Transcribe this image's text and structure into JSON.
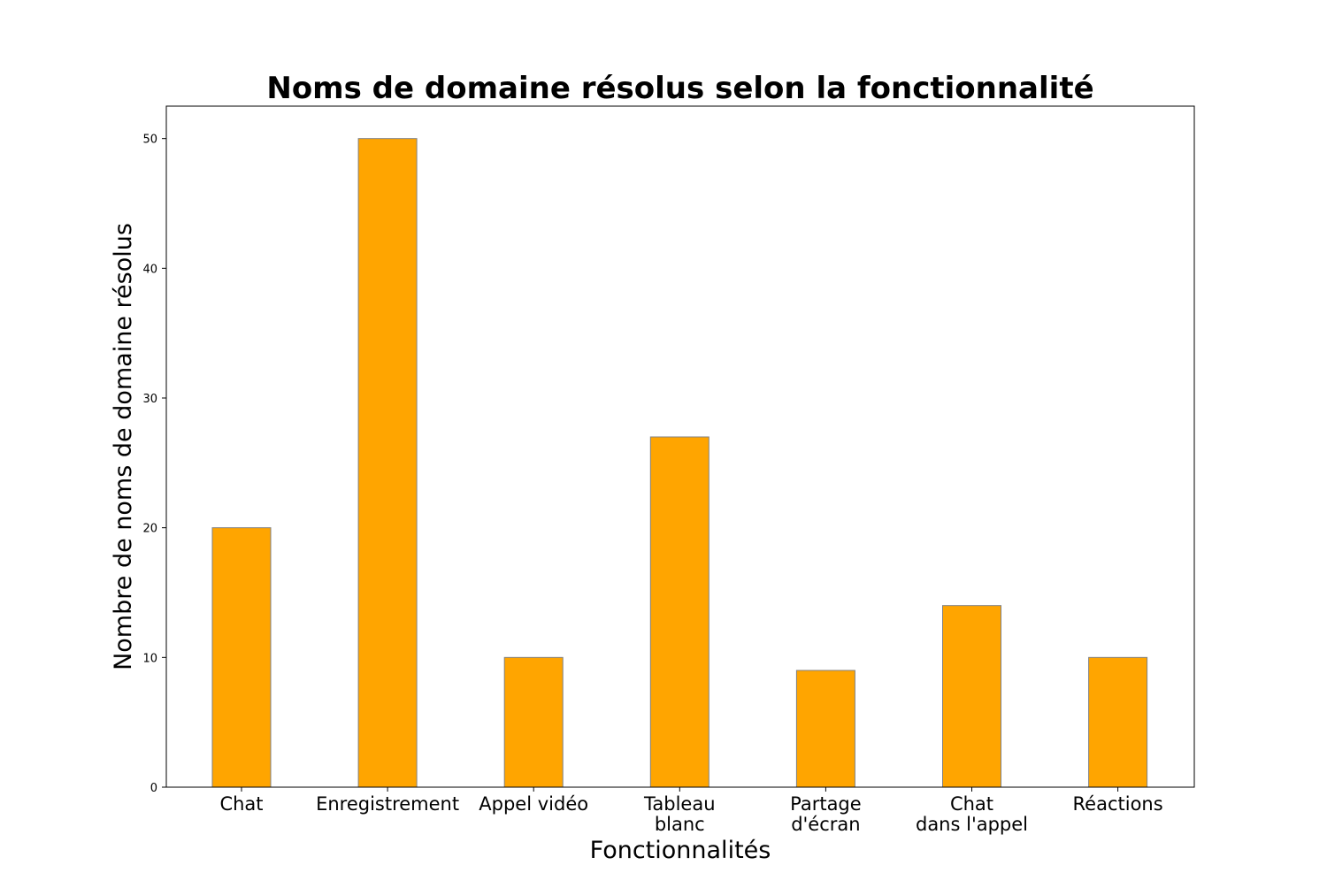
{
  "chart_data": {
    "type": "bar",
    "title": "Noms de domaine résolus selon la fonctionnalité",
    "xlabel": "Fonctionnalités",
    "ylabel": "Nombre de noms de domaine résolus",
    "categories": [
      "Chat",
      "Enregistrement",
      "Appel vidéo",
      "Tableau\nblanc",
      "Partage\nd'écran",
      "Chat\ndans l'appel",
      "Réactions"
    ],
    "values": [
      20,
      50,
      10,
      27,
      9,
      14,
      10
    ],
    "yticks": [
      0,
      10,
      20,
      30,
      40,
      50
    ],
    "ylim": [
      0,
      52.5
    ],
    "grid": false,
    "legend": "none",
    "bar_color": "#FFA500",
    "bar_edge_color": "#808080"
  }
}
